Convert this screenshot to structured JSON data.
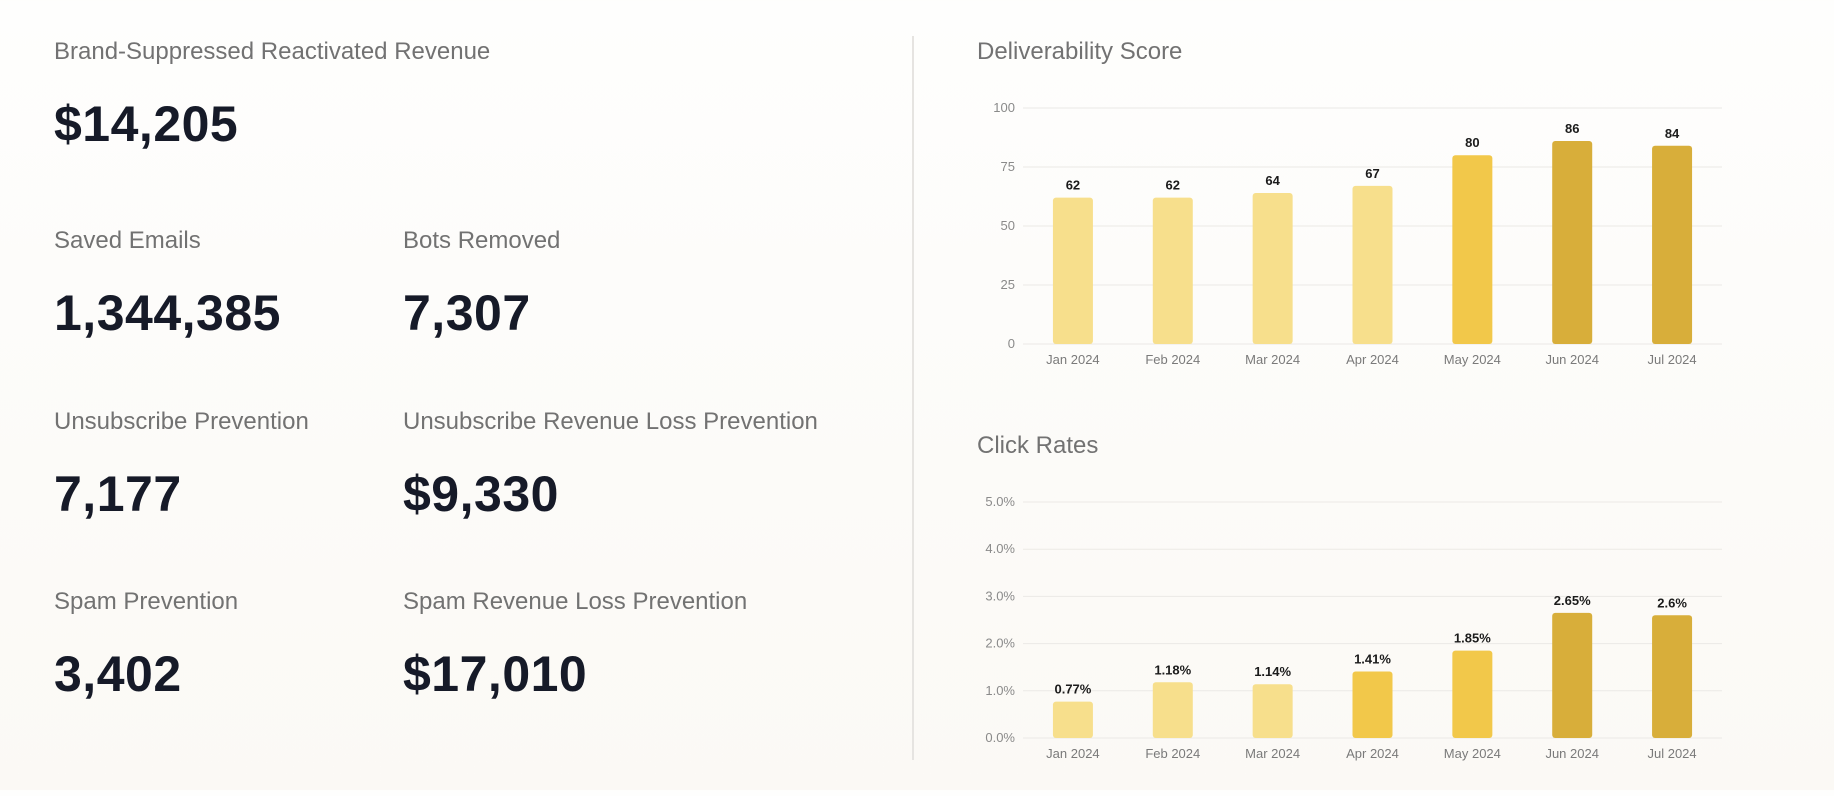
{
  "stats": {
    "brand_revenue": {
      "label": "Brand-Suppressed Reactivated Revenue",
      "value": "$14,205"
    },
    "saved_emails": {
      "label": "Saved Emails",
      "value": "1,344,385"
    },
    "bots_removed": {
      "label": "Bots Removed",
      "value": "7,307"
    },
    "unsub_prevention": {
      "label": "Unsubscribe Prevention",
      "value": "7,177"
    },
    "unsub_revenue": {
      "label": "Unsubscribe Revenue Loss Prevention",
      "value": "$9,330"
    },
    "spam_prevention": {
      "label": "Spam Prevention",
      "value": "3,402"
    },
    "spam_revenue": {
      "label": "Spam Revenue Loss Prevention",
      "value": "$17,010"
    }
  },
  "chart_data": [
    {
      "type": "bar",
      "title": "Deliverability Score",
      "categories": [
        "Jan 2024",
        "Feb 2024",
        "Mar 2024",
        "Apr 2024",
        "May 2024",
        "Jun 2024",
        "Jul 2024"
      ],
      "values": [
        62,
        62,
        64,
        67,
        80,
        86,
        84
      ],
      "data_labels": [
        "62",
        "62",
        "64",
        "67",
        "80",
        "86",
        "84"
      ],
      "yticks": [
        "0",
        "25",
        "50",
        "75",
        "100"
      ],
      "ylim": [
        0,
        100
      ],
      "grid": true,
      "colors": [
        "#f7df8c",
        "#f7df8c",
        "#f7df8c",
        "#f7df8c",
        "#f2c84a",
        "#d8ae3a",
        "#d8ae3a"
      ]
    },
    {
      "type": "bar",
      "title": "Click Rates",
      "categories": [
        "Jan 2024",
        "Feb 2024",
        "Mar 2024",
        "Apr 2024",
        "May 2024",
        "Jun 2024",
        "Jul 2024"
      ],
      "values": [
        0.77,
        1.18,
        1.14,
        1.41,
        1.85,
        2.65,
        2.6
      ],
      "data_labels": [
        "0.77%",
        "1.18%",
        "1.14%",
        "1.41%",
        "1.85%",
        "2.65%",
        "2.6%"
      ],
      "yticks": [
        "0.0%",
        "1.0%",
        "2.0%",
        "3.0%",
        "4.0%",
        "5.0%"
      ],
      "ylim": [
        0,
        5
      ],
      "grid": true,
      "colors": [
        "#f7df8c",
        "#f7df8c",
        "#f7df8c",
        "#f2c84a",
        "#f2c84a",
        "#d8ae3a",
        "#d8ae3a"
      ]
    }
  ]
}
